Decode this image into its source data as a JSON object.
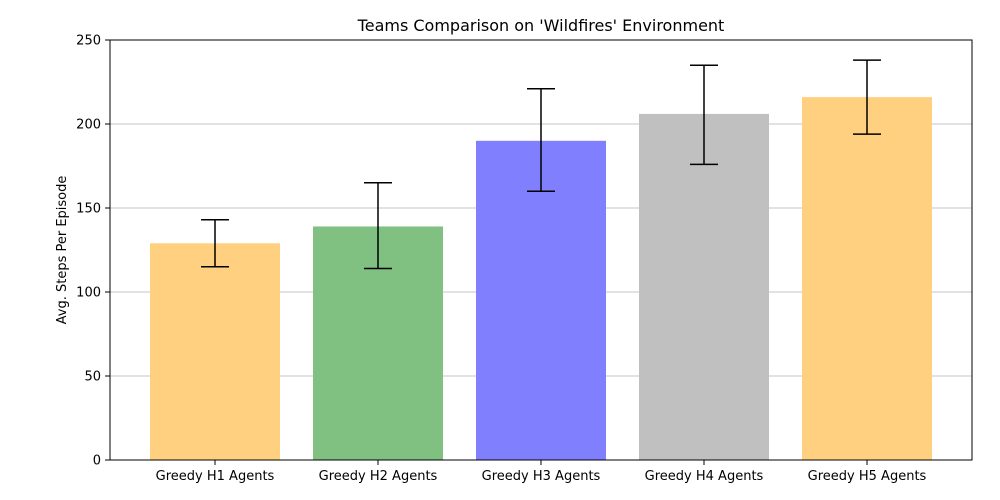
{
  "chart_data": {
    "type": "bar",
    "title": "Teams Comparison on 'Wildfires' Environment",
    "xlabel": "",
    "ylabel": "Avg. Steps Per Episode",
    "categories": [
      "Greedy H1 Agents",
      "Greedy H2 Agents",
      "Greedy H3 Agents",
      "Greedy H4 Agents",
      "Greedy H5 Agents"
    ],
    "values": [
      129,
      139,
      190,
      206,
      216
    ],
    "error_low": [
      115,
      114,
      160,
      176,
      194
    ],
    "error_high": [
      143,
      165,
      221,
      235,
      238
    ],
    "colors": [
      "#ffd080",
      "#80c080",
      "#8080ff",
      "#c0c0c0",
      "#ffd080"
    ],
    "ylim": [
      0,
      250
    ],
    "yticks": [
      0,
      50,
      100,
      150,
      200,
      250
    ],
    "grid": "horizontal",
    "legend": "none"
  }
}
